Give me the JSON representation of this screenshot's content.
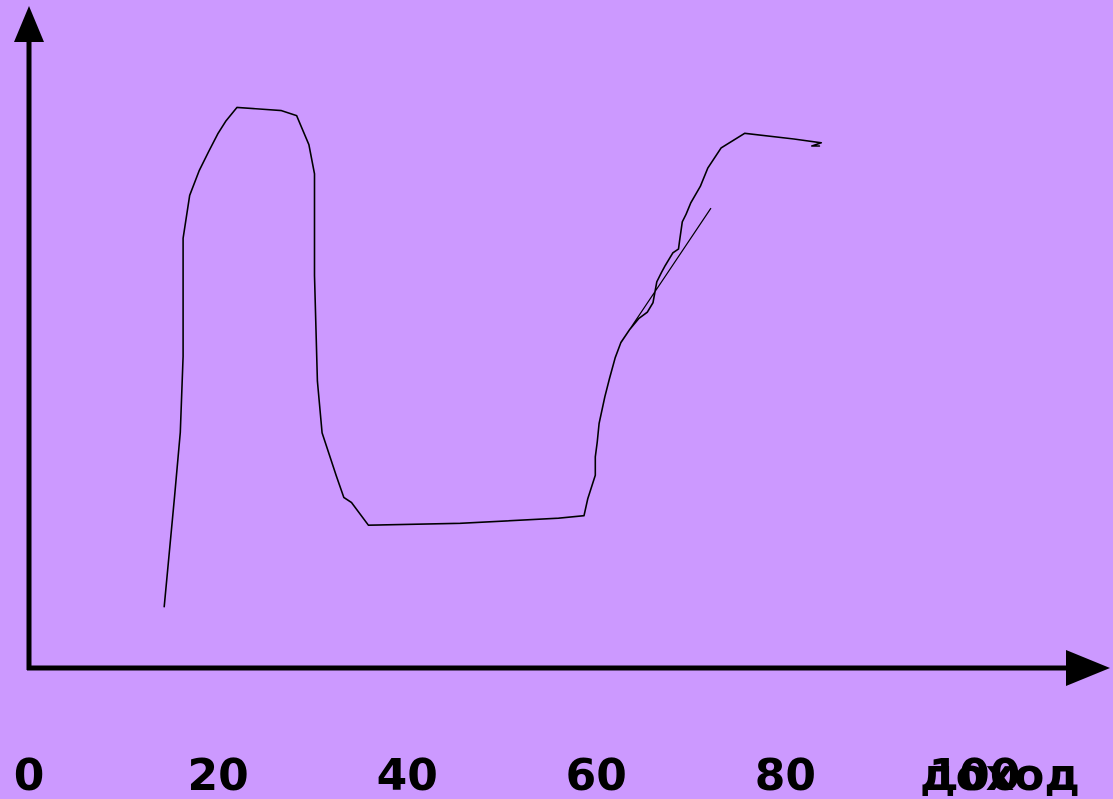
{
  "chart_data": {
    "type": "line",
    "title": "",
    "xlabel": "доход",
    "ylabel": "",
    "grid": false,
    "x_ticks": [
      0,
      20,
      40,
      60,
      80,
      100
    ],
    "x_tick_labels": [
      "0",
      "20",
      "40",
      "60",
      "80",
      "100"
    ],
    "xlim": [
      0,
      110
    ],
    "series": [
      {
        "x": [
          14.3,
          15.4,
          16.0,
          16.3,
          16.3,
          17.0,
          18.0,
          19.0,
          20.0,
          20.8,
          22.0,
          26.7,
          28.3,
          29.6,
          30.2,
          30.2,
          30.5,
          31.0,
          32.5,
          33.3,
          34.1,
          35.9,
          45.6,
          56.0,
          58.7,
          59.1,
          59.9,
          59.9,
          60.1,
          60.3,
          60.9,
          61.4,
          62.0,
          62.6,
          63.5,
          64.5,
          65.4,
          66.0,
          66.4,
          66.9,
          67.3,
          68.1,
          68.7,
          68.8,
          69.1,
          69.5,
          70.0,
          71.0,
          71.8,
          73.2,
          75.7,
          80.9,
          83.8,
          82.8,
          83.6
        ],
        "y": [
          9.7,
          27.2,
          37.3,
          49.3,
          68.0,
          74.8,
          78.7,
          81.7,
          84.6,
          86.5,
          88.7,
          88.2,
          87.4,
          82.8,
          78.2,
          62.1,
          45.4,
          37.2,
          30.4,
          27.0,
          26.2,
          22.6,
          22.9,
          23.7,
          24.1,
          26.8,
          30.5,
          33.4,
          35.7,
          38.7,
          42.9,
          45.8,
          49.1,
          51.5,
          53.5,
          55.3,
          56.3,
          57.8,
          61.1,
          62.6,
          63.7,
          65.7,
          66.3,
          67.5,
          70.6,
          71.8,
          73.6,
          76.2,
          79.1,
          82.3,
          84.6,
          83.7,
          83.1,
          82.6,
          82.6
        ]
      },
      {
        "x": [
          62.6,
          72.1
        ],
        "y": [
          51.5,
          72.7
        ]
      }
    ]
  }
}
